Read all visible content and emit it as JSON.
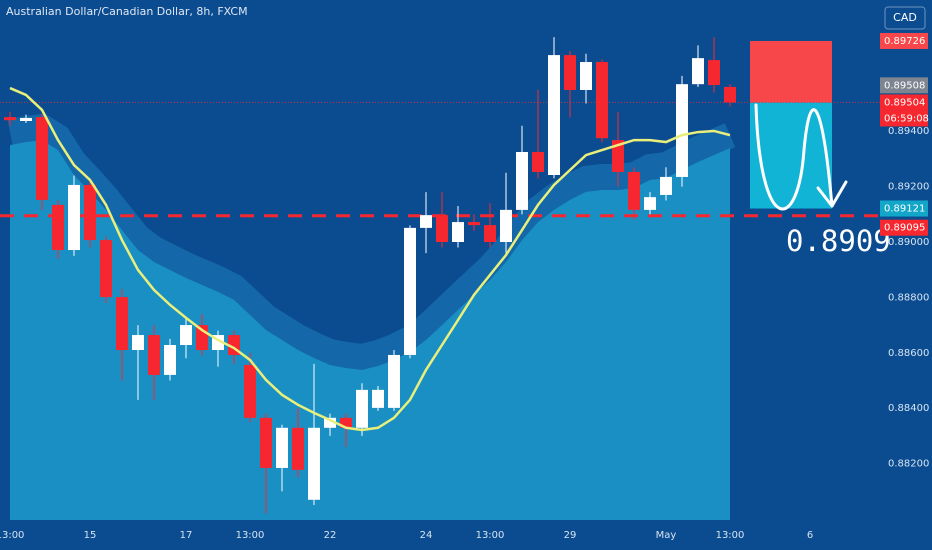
{
  "title": "Australian Dollar/Canadian Dollar, 8h, FXCM",
  "currency": "CAD",
  "countdown": "06:59:08",
  "target_text": "0.8909",
  "chart_data": {
    "type": "candlestick",
    "categories": [
      "13:00",
      null,
      null,
      null,
      null,
      "15",
      null,
      null,
      null,
      null,
      null,
      "17",
      null,
      null,
      null,
      "13:00",
      null,
      null,
      null,
      null,
      "22",
      null,
      null,
      null,
      null,
      null,
      "24",
      null,
      null,
      null,
      "13:00",
      null,
      null,
      null,
      null,
      "29",
      null,
      null,
      null,
      null,
      null,
      "May",
      null,
      null,
      null,
      "13:00",
      null,
      null,
      null,
      null,
      "6"
    ],
    "open": [
      0.89451,
      0.89437,
      0.89451,
      0.89134,
      0.88971,
      0.89206,
      0.89007,
      0.88801,
      0.8861,
      0.88664,
      0.8852,
      0.88628,
      0.887,
      0.8861,
      0.88664,
      0.88556,
      0.88365,
      0.88184,
      0.88329,
      0.88069,
      0.88329,
      0.88365,
      0.88329,
      0.88401,
      0.88401,
      0.88592,
      0.89051,
      0.89097,
      0.89,
      0.89072,
      0.89061,
      0.89,
      0.89116,
      0.89325,
      0.89242,
      0.89675,
      0.89549,
      0.8965,
      0.89368,
      0.89253,
      0.89116,
      0.8917,
      0.89235,
      0.8957,
      0.89657,
      0.8956,
      null,
      null,
      null,
      null,
      null
    ],
    "high": [
      0.8947,
      0.8946,
      0.8946,
      0.8915,
      0.8924,
      0.8923,
      0.8902,
      0.8883,
      0.887,
      0.887,
      0.8865,
      0.8873,
      0.8874,
      0.8868,
      0.8868,
      0.886,
      0.8838,
      0.8834,
      0.884,
      0.8856,
      0.8838,
      0.8838,
      0.8849,
      0.8848,
      0.8861,
      0.8906,
      0.8918,
      0.8918,
      0.8913,
      0.891,
      0.8914,
      0.8925,
      0.8942,
      0.8955,
      0.8974,
      0.8969,
      0.8968,
      0.8966,
      0.8947,
      0.8927,
      0.8918,
      0.8927,
      0.896,
      0.8971,
      0.8974,
      0.8957,
      null,
      null,
      null,
      null,
      null
    ],
    "low": [
      0.8942,
      0.8943,
      0.89115,
      0.8894,
      0.8895,
      0.8898,
      0.8878,
      0.885,
      0.8843,
      0.8843,
      0.885,
      0.8858,
      0.8859,
      0.8855,
      0.8856,
      0.8835,
      0.8802,
      0.881,
      0.8815,
      0.8805,
      0.883,
      0.8826,
      0.883,
      0.8839,
      0.8839,
      0.8858,
      0.8896,
      0.8898,
      0.8898,
      0.8904,
      0.8898,
      0.8896,
      0.891,
      0.8923,
      0.8923,
      0.8945,
      0.895,
      0.8936,
      0.892,
      0.8908,
      0.891,
      0.8915,
      0.892,
      0.8956,
      0.8954,
      0.8949,
      null,
      null,
      null,
      null,
      null
    ],
    "close": [
      0.8944,
      0.89448,
      0.89152,
      0.88971,
      0.89206,
      0.89007,
      0.88801,
      0.8861,
      0.88664,
      0.8852,
      0.88628,
      0.887,
      0.8861,
      0.88664,
      0.88592,
      0.88365,
      0.88184,
      0.88329,
      0.88177,
      0.88329,
      0.88365,
      0.88329,
      0.88466,
      0.88466,
      0.88592,
      0.89051,
      0.89097,
      0.89,
      0.89072,
      0.89061,
      0.89,
      0.89116,
      0.89325,
      0.89253,
      0.89675,
      0.89549,
      0.8965,
      0.89375,
      0.89253,
      0.89116,
      0.89162,
      0.89235,
      0.8957,
      0.89664,
      0.89567,
      0.89504,
      null,
      null,
      null,
      null,
      null
    ],
    "up_color": "#ffffff",
    "down_color": "#f7272f",
    "overlays": [
      {
        "style": "area",
        "color": "#1a8fc4",
        "values": [
          0.8935,
          0.89361,
          0.89368,
          0.89332,
          0.89242,
          0.89181,
          0.89116,
          0.89043,
          0.88971,
          0.88928,
          0.88899,
          0.8887,
          0.88845,
          0.8882,
          0.88791,
          0.88737,
          0.88682,
          0.88646,
          0.8861,
          0.88581,
          0.88556,
          0.88545,
          0.88538,
          0.88552,
          0.88574,
          0.88603,
          0.88646,
          0.887,
          0.88755,
          0.88809,
          0.88863,
          0.88928,
          0.89007,
          0.89072,
          0.89116,
          0.89152,
          0.89181,
          0.89188,
          0.89188,
          0.89195,
          0.89224,
          0.89231,
          0.8926,
          0.89289,
          0.89314,
          0.89339,
          null,
          null,
          null,
          null,
          null
        ]
      },
      {
        "style": "line",
        "color": "#e9ef7a",
        "values": [
          0.89556,
          0.89531,
          0.89477,
          0.89368,
          0.89278,
          0.89224,
          0.89134,
          0.89007,
          0.88899,
          0.88827,
          0.88773,
          0.88726,
          0.88682,
          0.88646,
          0.88617,
          0.88574,
          0.88502,
          0.88448,
          0.88412,
          0.88383,
          0.88357,
          0.88329,
          0.88321,
          0.88329,
          0.88365,
          0.8843,
          0.88538,
          0.88628,
          0.88718,
          0.88809,
          0.88881,
          0.88953,
          0.89043,
          0.89134,
          0.89206,
          0.8926,
          0.89314,
          0.89332,
          0.8935,
          0.89368,
          0.89368,
          0.89361,
          0.89386,
          0.89397,
          0.89401,
          0.89386,
          null,
          null,
          null,
          null,
          null
        ]
      }
    ],
    "ylim": [
      0.87996,
      0.89874
    ],
    "yticks": [
      {
        "value": 0.894,
        "label": "0.89400"
      },
      {
        "value": 0.892,
        "label": "0.89200"
      },
      {
        "value": 0.89,
        "label": "0.89000"
      },
      {
        "value": 0.888,
        "label": "0.88800"
      },
      {
        "value": 0.886,
        "label": "0.88600"
      },
      {
        "value": 0.884,
        "label": "0.88400"
      },
      {
        "value": 0.882,
        "label": "0.88200"
      }
    ],
    "price_labels": [
      {
        "value": 0.89726,
        "color": "#f7474a"
      },
      {
        "value": 0.89508,
        "color": "#7d8590"
      },
      {
        "value": 0.89504,
        "color": "#f7272f"
      },
      {
        "value": 0.89121,
        "color": "#12a7c9"
      },
      {
        "value": 0.89095,
        "color": "#f7272f"
      }
    ],
    "stop_color": "#f7474a",
    "target_color": "#12b4d6"
  }
}
